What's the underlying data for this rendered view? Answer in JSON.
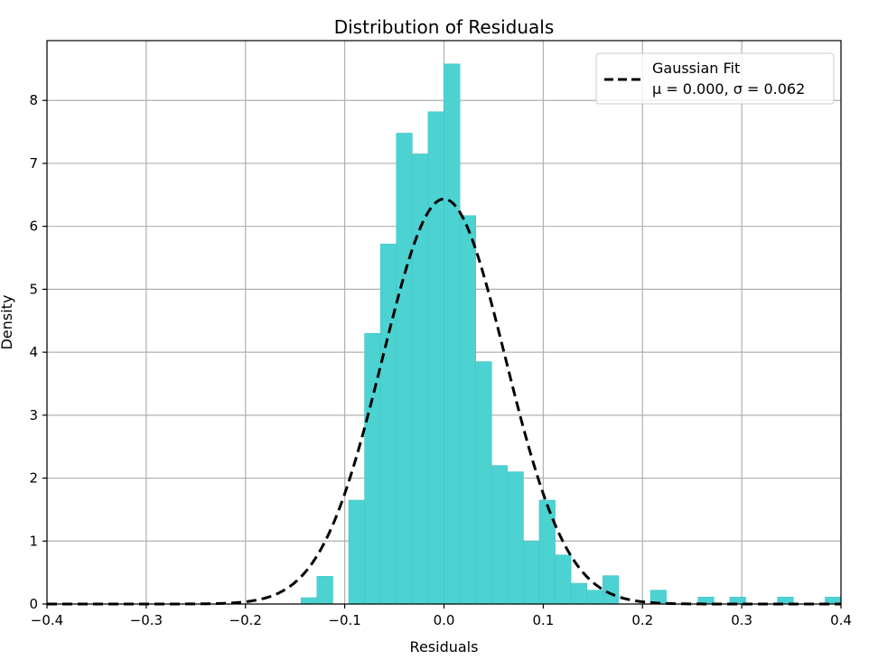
{
  "chart_data": {
    "type": "bar",
    "title": "Distribution of Residuals",
    "xlabel": "Residuals",
    "ylabel": "Density",
    "xlim": [
      -0.4,
      0.4
    ],
    "ylim": [
      0,
      8.95
    ],
    "xticks": [
      -0.4,
      -0.3,
      -0.2,
      -0.1,
      0.0,
      0.1,
      0.2,
      0.3,
      0.4
    ],
    "xtick_labels": [
      "−0.4",
      "−0.3",
      "−0.2",
      "−0.1",
      "0.0",
      "0.1",
      "0.2",
      "0.3",
      "0.4"
    ],
    "yticks": [
      0,
      1,
      2,
      3,
      4,
      5,
      6,
      7,
      8
    ],
    "ytick_labels": [
      "0",
      "1",
      "2",
      "3",
      "4",
      "5",
      "6",
      "7",
      "8"
    ],
    "grid": true,
    "legend_position": "top-right",
    "histogram": {
      "bin_width": 0.016,
      "bin_left_edges": [
        -0.144,
        -0.128,
        -0.096,
        -0.08,
        -0.064,
        -0.048,
        -0.032,
        -0.016,
        0.0,
        0.016,
        0.032,
        0.048,
        0.064,
        0.08,
        0.096,
        0.112,
        0.128,
        0.144,
        0.16,
        0.208,
        0.256,
        0.288,
        0.336,
        0.384
      ],
      "values": [
        0.1,
        0.44,
        1.65,
        4.3,
        5.72,
        7.48,
        7.15,
        7.82,
        8.58,
        6.17,
        3.85,
        2.2,
        2.1,
        1.0,
        1.65,
        0.78,
        0.33,
        0.22,
        0.45,
        0.22,
        0.11,
        0.11,
        0.11,
        0.11
      ],
      "color": "#4dd2d2",
      "edge_color": "#3fc4c4"
    },
    "series": [
      {
        "name": "Gaussian Fit",
        "type": "line",
        "style": "dashed",
        "color": "#000000",
        "mu": 0.0,
        "sigma": 0.062
      }
    ],
    "legend": {
      "line1": "Gaussian Fit",
      "line2": "μ = 0.000, σ = 0.062"
    }
  },
  "colors": {
    "grid": "#b0b0b0",
    "axes": "#000000",
    "background": "#ffffff"
  }
}
